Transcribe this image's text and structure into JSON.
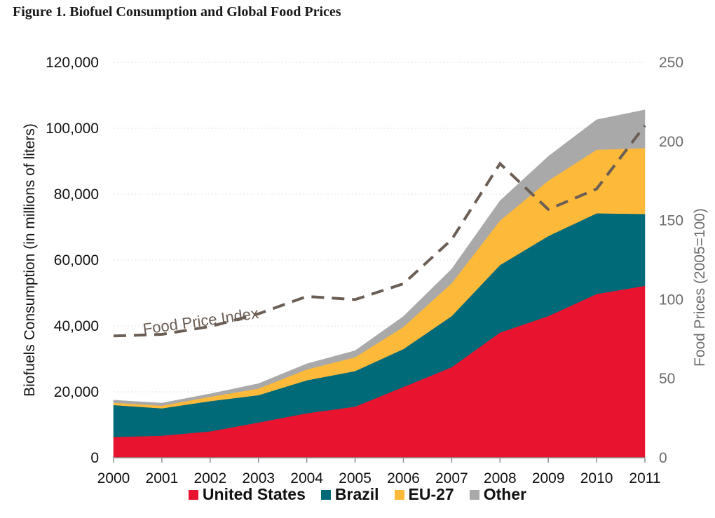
{
  "title": "Figure 1. Biofuel Consumption and Global Food Prices",
  "legend_items": [
    {
      "label": "United States",
      "color": "#E8132F"
    },
    {
      "label": "Brazil",
      "color": "#006A78"
    },
    {
      "label": "EU-27",
      "color": "#FDB93A"
    },
    {
      "label": "Other",
      "color": "#A9A9A9"
    }
  ],
  "chart_data": {
    "type": "area",
    "stacked": true,
    "title": "Figure 1. Biofuel Consumption and Global Food Prices",
    "x": [
      "2000",
      "2001",
      "2002",
      "2003",
      "2004",
      "2005",
      "2006",
      "2007",
      "2008",
      "2009",
      "2010",
      "2011"
    ],
    "xlabel": "",
    "ylabel": "Biofuels Consumption (in millions of liters)",
    "ylim": [
      0,
      120000
    ],
    "yticks": [
      "0",
      "20,000",
      "40,000",
      "60,000",
      "80,000",
      "100,000",
      "120,000"
    ],
    "y2label": "Food Prices (2005=100)",
    "y2lim": [
      0,
      250
    ],
    "y2ticks": [
      "0",
      "50",
      "100",
      "150",
      "200",
      "250"
    ],
    "series": [
      {
        "name": "United States",
        "color": "#E8132F",
        "values": [
          6300,
          6700,
          8000,
          10700,
          13500,
          15500,
          21500,
          27500,
          38000,
          43000,
          49700,
          52200
        ]
      },
      {
        "name": "Brazil",
        "color": "#006A78",
        "values": [
          9700,
          8300,
          9200,
          8300,
          10000,
          10800,
          11500,
          15500,
          20500,
          24300,
          24500,
          21800
        ]
      },
      {
        "name": "EU-27",
        "color": "#FDB93A",
        "values": [
          700,
          800,
          1300,
          2000,
          3300,
          4200,
          6700,
          10000,
          13500,
          16800,
          19300,
          20000
        ]
      },
      {
        "name": "Other",
        "color": "#A9A9A9",
        "values": [
          800,
          800,
          900,
          1500,
          1700,
          2000,
          3200,
          4300,
          6000,
          7400,
          9100,
          11600
        ]
      },
      {
        "name": "Food Price Index",
        "axis": "right",
        "style": "dashed",
        "color": "#6B5E55",
        "values": [
          77,
          78,
          83,
          91,
          102,
          100,
          110,
          138,
          186,
          157,
          170,
          210
        ]
      }
    ],
    "annotations": [
      {
        "text": "Food Price Index"
      }
    ],
    "grid": "horizontal dotted",
    "legend_position": "bottom"
  }
}
